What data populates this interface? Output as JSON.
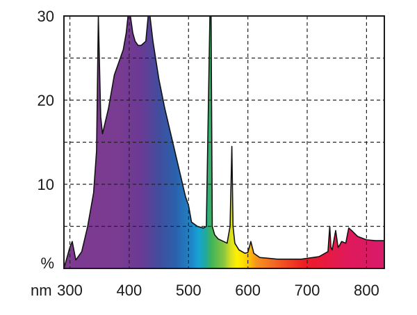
{
  "chart_data": {
    "type": "area",
    "title": "",
    "xlabel": "nm",
    "ylabel": "%",
    "xlim": [
      290,
      830
    ],
    "ylim": [
      0,
      30
    ],
    "x_ticks": [
      300,
      400,
      500,
      600,
      700,
      800
    ],
    "y_ticks": [
      10,
      20,
      30
    ],
    "grid": true,
    "grid_x": [
      300,
      400,
      500,
      600,
      700,
      800
    ],
    "grid_y": [
      5,
      10,
      15,
      20,
      25
    ],
    "fill": "visible-spectrum-gradient",
    "outline_color": "#111111",
    "series": [
      {
        "x": [
          290,
          300,
          304,
          310,
          320,
          330,
          340,
          345,
          348,
          352,
          355,
          365,
          375,
          385,
          390,
          395,
          398,
          402,
          406,
          410,
          415,
          420,
          428,
          432,
          435,
          440,
          450,
          460,
          470,
          480,
          490,
          495,
          500,
          505,
          515,
          525,
          530,
          536,
          538,
          540,
          542,
          544,
          550,
          565,
          570,
          573,
          575,
          578,
          585,
          595,
          600,
          605,
          610,
          620,
          650,
          690,
          720,
          735,
          738,
          740,
          742,
          748,
          752,
          755,
          758,
          765,
          770,
          775,
          785,
          800,
          815,
          830
        ],
        "y": [
          0,
          2.5,
          3.2,
          1.0,
          2.0,
          5.0,
          9.0,
          14.0,
          30.0,
          18.0,
          16.0,
          19.0,
          23.0,
          25.0,
          26.0,
          28.0,
          30.0,
          30.0,
          28.0,
          27.0,
          26.5,
          26.5,
          27.0,
          30.0,
          30.0,
          27.0,
          22.5,
          19.0,
          16.0,
          13.0,
          10.0,
          8.5,
          7.5,
          5.5,
          5.0,
          4.8,
          5.0,
          30.0,
          30.0,
          5.0,
          4.5,
          4.0,
          3.5,
          3.0,
          5.0,
          14.5,
          5.0,
          3.0,
          2.2,
          1.8,
          1.9,
          3.2,
          1.8,
          1.3,
          1.1,
          1.1,
          1.4,
          2.0,
          5.0,
          2.5,
          2.2,
          4.5,
          2.5,
          2.8,
          3.2,
          3.0,
          4.8,
          4.5,
          3.8,
          3.4,
          3.3,
          3.3
        ]
      }
    ]
  }
}
